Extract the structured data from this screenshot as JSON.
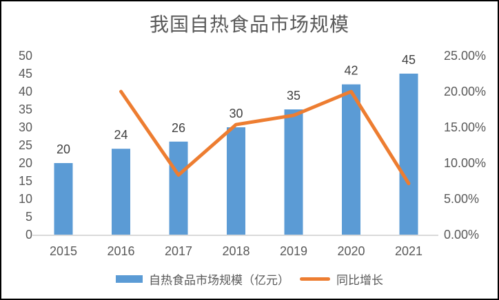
{
  "chart_data": {
    "type": "bar",
    "title": "我国自热食品市场规模",
    "categories": [
      "2015",
      "2016",
      "2017",
      "2018",
      "2019",
      "2020",
      "2021"
    ],
    "series": [
      {
        "name": "自热食品市场规模（亿元）",
        "type": "bar",
        "axis": "left",
        "color": "#5B9BD5",
        "values": [
          20,
          24,
          26,
          30,
          35,
          42,
          45
        ],
        "data_labels": [
          "20",
          "24",
          "26",
          "30",
          "35",
          "42",
          "45"
        ]
      },
      {
        "name": "同比增长",
        "type": "line",
        "axis": "right",
        "color": "#ED7D31",
        "values_pct": [
          null,
          20.0,
          8.33,
          15.38,
          16.67,
          20.0,
          7.14
        ]
      }
    ],
    "left_axis": {
      "min": 0,
      "max": 50,
      "step": 5,
      "ticks": [
        "0",
        "5",
        "10",
        "15",
        "20",
        "25",
        "30",
        "35",
        "40",
        "45",
        "50"
      ]
    },
    "right_axis": {
      "min": 0,
      "max": 25,
      "step": 5,
      "ticks": [
        "0.00%",
        "5.00%",
        "10.00%",
        "15.00%",
        "20.00%",
        "25.00%"
      ]
    },
    "grid": false,
    "legend_position": "bottom"
  },
  "colors": {
    "bar": "#5B9BD5",
    "line": "#ED7D31",
    "axis_line": "#D9D9D9",
    "tick_text": "#595959",
    "data_label_text": "#404040",
    "title_text": "#595959",
    "frame_border": "#000000",
    "background": "#FFFFFF"
  }
}
